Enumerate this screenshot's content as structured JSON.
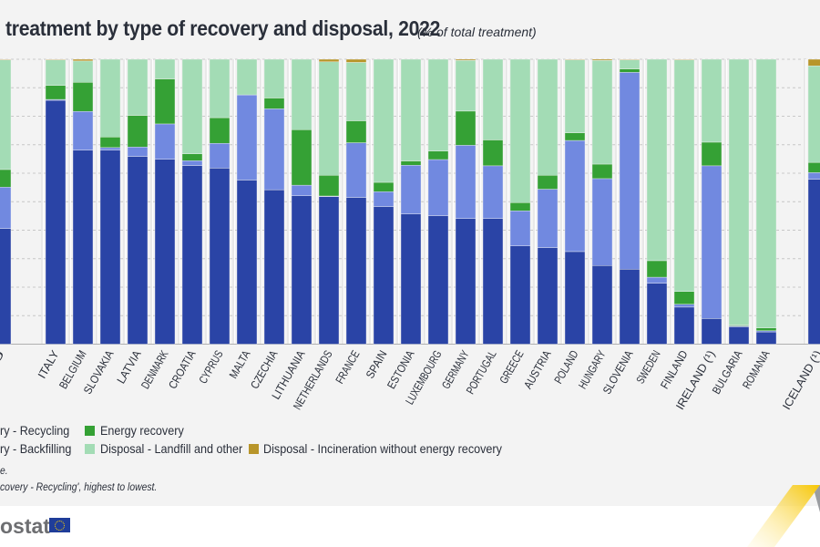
{
  "title": "treatment by type of recovery and disposal, 2022",
  "subtitle": "(% of total treatment)",
  "legend": {
    "recycling": "ry - Recycling",
    "backfilling": "ry - Backfilling",
    "energy": "Energy recovery",
    "landfill": "Disposal - Landfill and other",
    "incineration": "Disposal - Incineration without energy recovery"
  },
  "notes": [
    "e.",
    "covery - Recycling', highest to lowest."
  ],
  "logo_text": "ostat",
  "colors": {
    "recycling": "#2a44a6",
    "backfilling": "#7189e0",
    "energy": "#35a135",
    "landfill": "#a3dcb5",
    "incineration": "#b8952a"
  },
  "chart_data": {
    "type": "bar",
    "stacked": true,
    "ylim": [
      0,
      100
    ],
    "grid": true,
    "legend_placement": "bottom",
    "categories": [
      "EU",
      "ITALY",
      "BELGIUM",
      "SLOVAKIA",
      "LATVIA",
      "DENMARK",
      "CROATIA",
      "CYPRUS",
      "MALTA",
      "CZECHIA",
      "LITHUANIA",
      "NETHERLANDS",
      "FRANCE",
      "SPAIN",
      "ESTONIA",
      "LUXEMBOURG",
      "GERMANY",
      "PORTUGAL",
      "GREECE",
      "AUSTRIA",
      "POLAND",
      "HUNGARY",
      "SLOVENIA",
      "SWEDEN",
      "FINLAND",
      "IRELAND (¹)",
      "BULGARIA",
      "ROMANIA",
      "ICELAND (¹)"
    ],
    "category_labels": [
      "U",
      "ITALY",
      "BELGIUM",
      "SLOVAKIA",
      "LATVIA",
      "DENMARK",
      "CROATIA",
      "CYPRUS",
      "MALTA",
      "CZECHIA",
      "LITHUANIA",
      "NETHERLANDS",
      "FRANCE",
      "SPAIN",
      "ESTONIA",
      "LUXEMBOURG",
      "GERMANY",
      "PORTUGAL",
      "GREECE",
      "AUSTRIA",
      "POLAND",
      "HUNGARY",
      "SLOVENIA",
      "SWEDEN",
      "FINLAND",
      "IRELAND (¹)",
      "BULGARIA",
      "ROMANIA",
      "ICELAND (¹)"
    ],
    "series": [
      {
        "name": "Recovery - Recycling",
        "key": "recycling",
        "values": [
          40.6,
          85.6,
          68.1,
          68.1,
          65.9,
          64.9,
          62.7,
          61.8,
          57.6,
          54.2,
          52.1,
          51.8,
          51.5,
          48.3,
          45.7,
          45.1,
          44.1,
          44.1,
          34.5,
          33.9,
          32.5,
          27.6,
          26.3,
          21.4,
          13.0,
          9.0,
          6.1,
          4.3,
          57.9
        ]
      },
      {
        "name": "Recovery - Backfilling",
        "key": "backfilling",
        "values": [
          14.5,
          0.3,
          13.6,
          0.9,
          3.3,
          12.4,
          1.7,
          8.7,
          29.9,
          28.4,
          3.7,
          0.2,
          19.2,
          5.2,
          17.1,
          19.7,
          25.7,
          18.5,
          12.3,
          20.5,
          39.0,
          30.5,
          69.1,
          2.1,
          1.0,
          53.6,
          0.3,
          0.4,
          2.3
        ]
      },
      {
        "name": "Energy recovery",
        "key": "energy",
        "values": [
          6.2,
          4.9,
          10.2,
          3.7,
          11.1,
          15.8,
          2.4,
          9.0,
          0.0,
          3.8,
          19.5,
          7.3,
          7.7,
          3.3,
          1.5,
          3.0,
          12.0,
          9.1,
          2.9,
          4.9,
          2.7,
          5.1,
          1.2,
          5.8,
          4.5,
          8.3,
          0.3,
          1.0,
          3.6
        ]
      },
      {
        "name": "Disposal - Landfill and other",
        "key": "landfill",
        "values": [
          38.5,
          9.0,
          7.5,
          27.3,
          19.7,
          6.9,
          33.2,
          20.5,
          12.5,
          13.6,
          24.7,
          39.8,
          20.5,
          43.2,
          35.7,
          32.2,
          17.8,
          28.3,
          50.3,
          40.7,
          25.6,
          36.4,
          3.2,
          70.7,
          81.3,
          29.1,
          93.3,
          94.3,
          33.9
        ]
      },
      {
        "name": "Disposal - Incineration without energy recovery",
        "key": "incineration",
        "values": [
          0.2,
          0.2,
          0.6,
          0.0,
          0.0,
          0.0,
          0.0,
          0.0,
          0.0,
          0.0,
          0.0,
          0.9,
          1.1,
          0.0,
          0.0,
          0.0,
          0.4,
          0.0,
          0.0,
          0.0,
          0.2,
          0.4,
          0.2,
          0.0,
          0.2,
          0.0,
          0.0,
          0.0,
          2.3
        ]
      }
    ]
  }
}
